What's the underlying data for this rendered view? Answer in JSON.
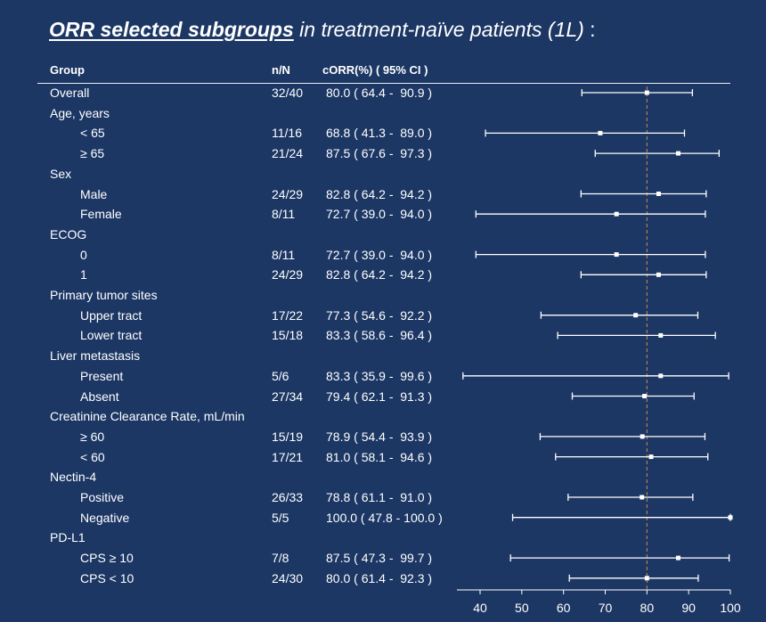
{
  "title": {
    "emphasis": "ORR selected subgroups",
    "rest": " in treatment-naïve patients (1L)",
    "suffix": " :"
  },
  "columns": {
    "group": "Group",
    "nN": "n/N",
    "orr": "cORR(%) ( 95% CI )"
  },
  "chart_data": {
    "type": "forest",
    "reference_line": 80,
    "reference_line_style": "dashed",
    "xlim": [
      35,
      100
    ],
    "xticks": [
      40,
      50,
      60,
      70,
      80,
      90,
      100
    ],
    "rows": [
      {
        "label": "Overall",
        "indent": 0,
        "nN": "32/40",
        "ci_text": "80.0 ( 64.4 -  90.9 )",
        "est": 80.0,
        "lo": 64.4,
        "hi": 90.9
      },
      {
        "label": "Age, years",
        "indent": 0
      },
      {
        "label": "< 65",
        "indent": 1,
        "nN": "11/16",
        "ci_text": "68.8 ( 41.3 -  89.0 )",
        "est": 68.8,
        "lo": 41.3,
        "hi": 89.0
      },
      {
        "label": "≥ 65",
        "indent": 1,
        "nN": "21/24",
        "ci_text": "87.5 ( 67.6 -  97.3 )",
        "est": 87.5,
        "lo": 67.6,
        "hi": 97.3
      },
      {
        "label": "Sex",
        "indent": 0
      },
      {
        "label": "Male",
        "indent": 1,
        "nN": "24/29",
        "ci_text": "82.8 ( 64.2 -  94.2 )",
        "est": 82.8,
        "lo": 64.2,
        "hi": 94.2
      },
      {
        "label": "Female",
        "indent": 1,
        "nN": "8/11",
        "ci_text": "72.7 ( 39.0 -  94.0 )",
        "est": 72.7,
        "lo": 39.0,
        "hi": 94.0
      },
      {
        "label": "ECOG",
        "indent": 0
      },
      {
        "label": "0",
        "indent": 1,
        "nN": "8/11",
        "ci_text": "72.7 ( 39.0 -  94.0 )",
        "est": 72.7,
        "lo": 39.0,
        "hi": 94.0
      },
      {
        "label": "1",
        "indent": 1,
        "nN": "24/29",
        "ci_text": "82.8 ( 64.2 -  94.2 )",
        "est": 82.8,
        "lo": 64.2,
        "hi": 94.2
      },
      {
        "label": "Primary tumor sites",
        "indent": 0
      },
      {
        "label": "Upper tract",
        "indent": 1,
        "nN": "17/22",
        "ci_text": "77.3 ( 54.6 -  92.2 )",
        "est": 77.3,
        "lo": 54.6,
        "hi": 92.2
      },
      {
        "label": "Lower tract",
        "indent": 1,
        "nN": "15/18",
        "ci_text": "83.3 ( 58.6 -  96.4 )",
        "est": 83.3,
        "lo": 58.6,
        "hi": 96.4
      },
      {
        "label": "Liver metastasis",
        "indent": 0
      },
      {
        "label": "Present",
        "indent": 1,
        "nN": "5/6",
        "ci_text": "83.3 ( 35.9 -  99.6 )",
        "est": 83.3,
        "lo": 35.9,
        "hi": 99.6
      },
      {
        "label": "Absent",
        "indent": 1,
        "nN": "27/34",
        "ci_text": "79.4 ( 62.1 -  91.3 )",
        "est": 79.4,
        "lo": 62.1,
        "hi": 91.3
      },
      {
        "label": "Creatinine Clearance Rate, mL/min",
        "indent": 0
      },
      {
        "label": "≥ 60",
        "indent": 1,
        "nN": "15/19",
        "ci_text": "78.9 ( 54.4 -  93.9 )",
        "est": 78.9,
        "lo": 54.4,
        "hi": 93.9
      },
      {
        "label": "< 60",
        "indent": 1,
        "nN": "17/21",
        "ci_text": "81.0 ( 58.1 -  94.6 )",
        "est": 81.0,
        "lo": 58.1,
        "hi": 94.6
      },
      {
        "label": "Nectin-4",
        "indent": 0
      },
      {
        "label": "Positive",
        "indent": 1,
        "nN": "26/33",
        "ci_text": "78.8 ( 61.1 -  91.0 )",
        "est": 78.8,
        "lo": 61.1,
        "hi": 91.0
      },
      {
        "label": "Negative",
        "indent": 1,
        "nN": "5/5",
        "ci_text": "100.0 ( 47.8 - 100.0 )",
        "est": 100.0,
        "lo": 47.8,
        "hi": 100.0
      },
      {
        "label": "PD-L1",
        "indent": 0
      },
      {
        "label": "CPS ≥ 10",
        "indent": 1,
        "nN": "7/8",
        "ci_text": "87.5 ( 47.3 -  99.7 )",
        "est": 87.5,
        "lo": 47.3,
        "hi": 99.7
      },
      {
        "label": "CPS < 10",
        "indent": 1,
        "nN": "24/30",
        "ci_text": "80.0 ( 61.4 -  92.3 )",
        "est": 80.0,
        "lo": 61.4,
        "hi": 92.3
      }
    ]
  },
  "colors": {
    "background": "#1c3764",
    "text": "#ffffff",
    "reference_line": "#c98a4b"
  }
}
